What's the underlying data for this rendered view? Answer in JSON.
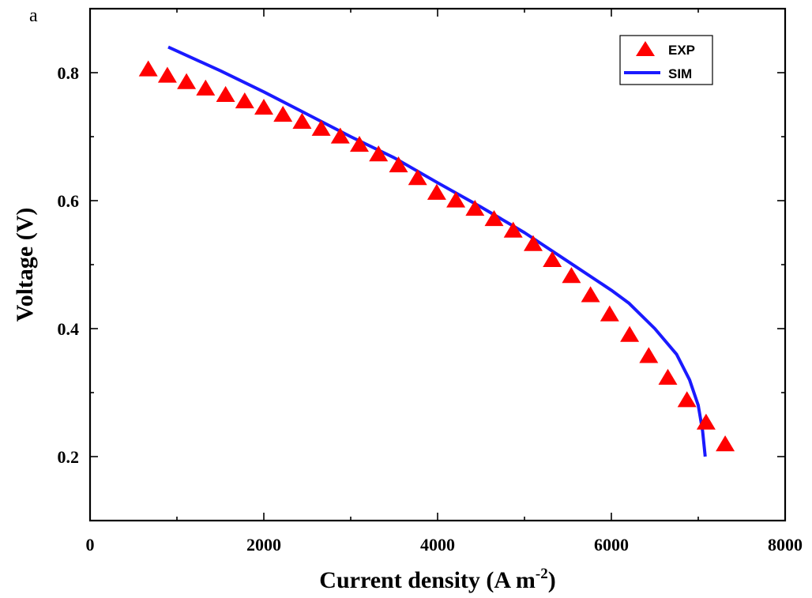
{
  "chart_data": {
    "type": "scatter",
    "panel_label": "a",
    "xlabel_main": "Current density (A m",
    "xlabel_sup": "-2",
    "xlabel_end": ")",
    "ylabel": "Voltage (V)",
    "xlim": [
      0,
      8000
    ],
    "ylim": [
      0.1,
      0.9
    ],
    "x_ticks": [
      0,
      2000,
      4000,
      6000,
      8000
    ],
    "x_tick_labels": [
      "0",
      "2000",
      "4000",
      "6000",
      "8000"
    ],
    "y_ticks": [
      0.2,
      0.4,
      0.6,
      0.8
    ],
    "y_tick_labels": [
      "0.2",
      "0.4",
      "0.6",
      "0.8"
    ],
    "legend_position": "top-right",
    "series": [
      {
        "name": "EXP",
        "style": "markers",
        "marker": "triangle",
        "color": "#ff0000",
        "x": [
          670,
          890,
          1110,
          1330,
          1560,
          1780,
          2000,
          2220,
          2440,
          2660,
          2880,
          3100,
          3320,
          3550,
          3770,
          3990,
          4210,
          4430,
          4650,
          4870,
          5100,
          5320,
          5540,
          5760,
          5980,
          6210,
          6430,
          6650,
          6870,
          7090,
          7310
        ],
        "y": [
          0.805,
          0.795,
          0.785,
          0.775,
          0.765,
          0.755,
          0.745,
          0.734,
          0.723,
          0.712,
          0.7,
          0.687,
          0.672,
          0.655,
          0.635,
          0.612,
          0.6,
          0.587,
          0.571,
          0.553,
          0.532,
          0.507,
          0.482,
          0.452,
          0.422,
          0.39,
          0.357,
          0.323,
          0.288,
          0.253,
          0.219
        ]
      },
      {
        "name": "SIM",
        "style": "line",
        "color": "#1a1aff",
        "x": [
          900,
          1500,
          2000,
          2500,
          3000,
          3500,
          4000,
          4500,
          5000,
          5500,
          6000,
          6200,
          6500,
          6750,
          6900,
          7000,
          7050,
          7080
        ],
        "y": [
          0.84,
          0.803,
          0.77,
          0.735,
          0.7,
          0.667,
          0.628,
          0.59,
          0.55,
          0.505,
          0.46,
          0.44,
          0.4,
          0.36,
          0.32,
          0.28,
          0.24,
          0.2
        ]
      }
    ]
  }
}
